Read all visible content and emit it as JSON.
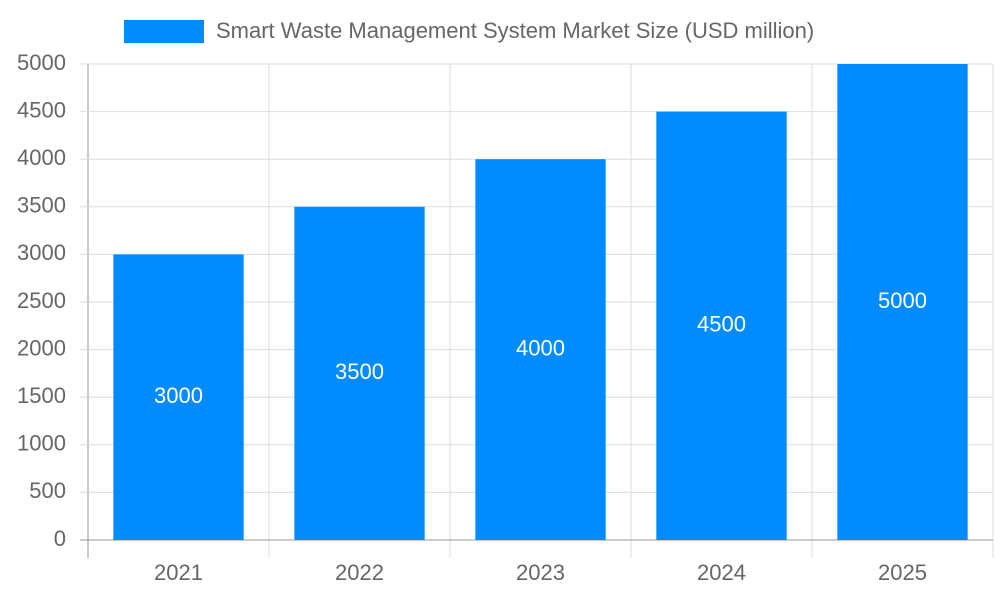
{
  "chart_data": {
    "type": "bar",
    "categories": [
      "2021",
      "2022",
      "2023",
      "2024",
      "2025"
    ],
    "series": [
      {
        "name": "Smart Waste Management System Market Size (USD million)",
        "color": "#008cff",
        "values": [
          3000,
          3500,
          4000,
          4500,
          5000
        ]
      }
    ],
    "ylim": [
      0,
      5000
    ],
    "yticks": [
      0,
      500,
      1000,
      1500,
      2000,
      2500,
      3000,
      3500,
      4000,
      4500,
      5000
    ],
    "grid": true,
    "legend": "top"
  }
}
